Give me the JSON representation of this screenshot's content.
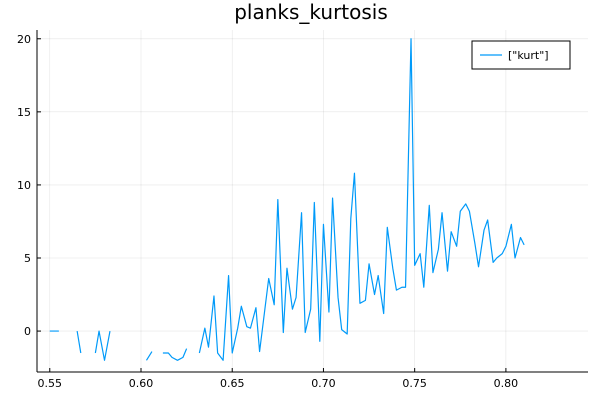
{
  "chart_data": {
    "type": "line",
    "title": "planks_kurtosis",
    "xlabel": "",
    "ylabel": "",
    "xlim": [
      0.543,
      0.845
    ],
    "ylim": [
      -2.8,
      20.6
    ],
    "xticks": [
      0.55,
      0.6,
      0.65,
      0.7,
      0.75,
      0.8
    ],
    "xtick_labels": [
      "0.55",
      "0.60",
      "0.65",
      "0.70",
      "0.75",
      "0.80"
    ],
    "yticks": [
      0,
      5,
      10,
      15,
      20
    ],
    "ytick_labels": [
      "0",
      "5",
      "10",
      "15",
      "20"
    ],
    "grid": true,
    "legend_position": "top-right",
    "series": [
      {
        "name": "[\"kurt\"]",
        "color": "#009af9",
        "points": [
          [
            0.55,
            0.0
          ],
          [
            0.555,
            0.0
          ],
          null,
          [
            0.565,
            0.0
          ],
          [
            0.567,
            -1.5
          ],
          null,
          [
            0.575,
            -1.5
          ],
          [
            0.577,
            0.0
          ],
          [
            0.58,
            -2.0
          ],
          [
            0.583,
            0.0
          ],
          null,
          [
            0.603,
            -2.0
          ],
          [
            0.606,
            -1.4
          ],
          null,
          [
            0.612,
            -1.5
          ],
          [
            0.615,
            -1.5
          ],
          [
            0.617,
            -1.8
          ],
          [
            0.62,
            -2.0
          ],
          [
            0.623,
            -1.8
          ],
          [
            0.625,
            -1.2
          ],
          null,
          [
            0.632,
            -1.5
          ],
          [
            0.635,
            0.2
          ],
          [
            0.637,
            -1.1
          ],
          [
            0.64,
            2.4
          ],
          [
            0.642,
            -1.5
          ],
          [
            0.645,
            -2.0
          ],
          [
            0.648,
            3.8
          ],
          [
            0.65,
            -1.5
          ],
          [
            0.653,
            0.2
          ],
          [
            0.655,
            1.7
          ],
          [
            0.658,
            0.3
          ],
          [
            0.66,
            0.2
          ],
          [
            0.663,
            1.6
          ],
          [
            0.665,
            -1.4
          ],
          [
            0.668,
            1.6
          ],
          [
            0.67,
            3.6
          ],
          [
            0.673,
            1.8
          ],
          [
            0.675,
            9.0
          ],
          [
            0.678,
            -0.1
          ],
          [
            0.68,
            4.3
          ],
          [
            0.683,
            1.5
          ],
          [
            0.685,
            2.3
          ],
          [
            0.688,
            8.1
          ],
          [
            0.69,
            -0.1
          ],
          [
            0.693,
            1.5
          ],
          [
            0.695,
            8.8
          ],
          [
            0.698,
            -0.7
          ],
          [
            0.7,
            7.3
          ],
          [
            0.703,
            1.3
          ],
          [
            0.705,
            9.1
          ],
          [
            0.708,
            2.3
          ],
          [
            0.71,
            0.1
          ],
          [
            0.713,
            -0.2
          ],
          [
            0.715,
            7.7
          ],
          [
            0.717,
            10.8
          ],
          [
            0.72,
            1.9
          ],
          [
            0.723,
            2.1
          ],
          [
            0.725,
            4.6
          ],
          [
            0.728,
            2.5
          ],
          [
            0.73,
            3.8
          ],
          [
            0.733,
            1.2
          ],
          [
            0.735,
            7.1
          ],
          [
            0.738,
            4.3
          ],
          [
            0.74,
            2.8
          ],
          [
            0.743,
            3.0
          ],
          [
            0.745,
            3.0
          ],
          [
            0.748,
            20.0
          ],
          [
            0.75,
            4.5
          ],
          [
            0.753,
            5.3
          ],
          [
            0.755,
            3.0
          ],
          [
            0.758,
            8.6
          ],
          [
            0.76,
            4.0
          ],
          [
            0.763,
            5.6
          ],
          [
            0.765,
            8.1
          ],
          [
            0.768,
            4.1
          ],
          [
            0.77,
            6.8
          ],
          [
            0.773,
            5.8
          ],
          [
            0.775,
            8.2
          ],
          [
            0.778,
            8.7
          ],
          [
            0.78,
            8.2
          ],
          [
            0.783,
            6.0
          ],
          [
            0.785,
            4.4
          ],
          [
            0.788,
            6.9
          ],
          [
            0.79,
            7.6
          ],
          [
            0.793,
            4.7
          ],
          [
            0.795,
            5.0
          ],
          [
            0.798,
            5.3
          ],
          [
            0.8,
            5.8
          ],
          [
            0.803,
            7.3
          ],
          [
            0.805,
            5.0
          ],
          [
            0.808,
            6.4
          ],
          [
            0.81,
            5.9
          ]
        ]
      }
    ]
  }
}
